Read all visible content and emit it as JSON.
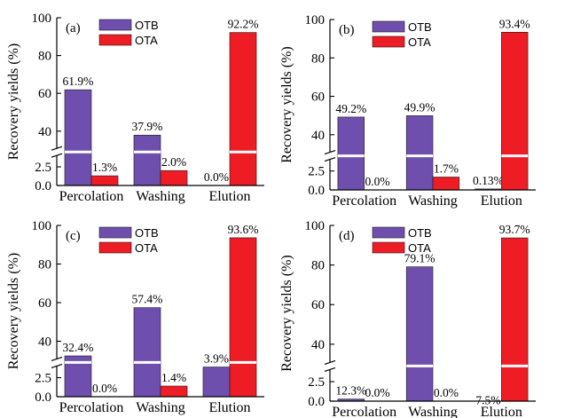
{
  "colors": {
    "OTB": "#6f4fae",
    "OTA": "#ee1c25"
  },
  "chart_data": [
    {
      "type": "bar",
      "panel": "(a)",
      "categories": [
        "Percolation",
        "Washing",
        "Elution"
      ],
      "series": [
        {
          "name": "OTB",
          "values": [
            61.9,
            37.9,
            0.0
          ],
          "labels": [
            "61.9%",
            "37.9%",
            "0.0%"
          ]
        },
        {
          "name": "OTA",
          "values": [
            1.3,
            2.0,
            92.2
          ],
          "labels": [
            "1.3%",
            "2.0%",
            "92.2%"
          ]
        }
      ],
      "ylabel": "Recovery yields (%)",
      "yticks": [
        "0.0",
        "2.5",
        "40",
        "60",
        "80",
        "100"
      ],
      "ylim_lower": [
        0,
        4.5
      ],
      "ylim_upper": [
        29,
        100
      ],
      "axis_break": true
    },
    {
      "type": "bar",
      "panel": "(b)",
      "categories": [
        "Percolation",
        "Washing",
        "Elution"
      ],
      "series": [
        {
          "name": "OTB",
          "values": [
            49.2,
            49.9,
            0.13
          ],
          "labels": [
            "49.2%",
            "49.9%",
            "0.13%"
          ]
        },
        {
          "name": "OTA",
          "values": [
            0.0,
            1.7,
            93.4
          ],
          "labels": [
            "0.0%",
            "1.7%",
            "93.4%"
          ]
        }
      ],
      "ylabel": "Recovery yields (%)",
      "yticks": [
        "0.0",
        "2.5",
        "40",
        "60",
        "80",
        "100"
      ],
      "ylim_lower": [
        0,
        4.5
      ],
      "ylim_upper": [
        29,
        100
      ],
      "axis_break": true
    },
    {
      "type": "bar",
      "panel": "(c)",
      "categories": [
        "Percolation",
        "Washing",
        "Elution"
      ],
      "series": [
        {
          "name": "OTB",
          "values": [
            32.4,
            57.4,
            3.9
          ],
          "labels": [
            "32.4%",
            "57.4%",
            "3.9%"
          ]
        },
        {
          "name": "OTA",
          "values": [
            0.0,
            1.4,
            93.6
          ],
          "labels": [
            "0.0%",
            "1.4%",
            "93.6%"
          ]
        }
      ],
      "ylabel": "Recovery yields (%)",
      "yticks": [
        "0.0",
        "2.5",
        "40",
        "60",
        "80",
        "100"
      ],
      "ylim_lower": [
        0,
        4.5
      ],
      "ylim_upper": [
        29,
        100
      ],
      "axis_break": true
    },
    {
      "type": "bar",
      "panel": "(d)",
      "categories": [
        "Percolation",
        "Washing",
        "Elution"
      ],
      "series": [
        {
          "name": "OTB",
          "values": [
            12.3,
            79.1,
            7.5
          ],
          "labels": [
            "12.3%",
            "79.1%",
            "7.5%"
          ]
        },
        {
          "name": "OTA",
          "values": [
            0.0,
            0.0,
            93.7
          ],
          "labels": [
            "0.0%",
            "0.0%",
            "93.7%"
          ]
        }
      ],
      "ylabel": "Recovery yields (%)",
      "yticks": [
        "0.0",
        "2.5",
        "40",
        "60",
        "80",
        "100"
      ],
      "ylim_lower": [
        0,
        4.5
      ],
      "ylim_upper": [
        29,
        100
      ],
      "axis_break": true
    }
  ]
}
